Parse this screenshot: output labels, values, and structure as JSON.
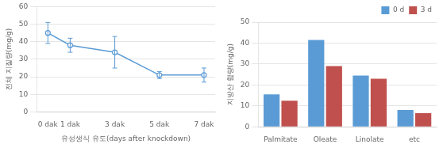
{
  "chart_data": [
    {
      "type": "line",
      "x": [
        0,
        1,
        3,
        5,
        7
      ],
      "values": [
        45,
        38,
        34,
        21,
        21
      ],
      "yerr": [
        6,
        4,
        9,
        2,
        4
      ],
      "color": "#5B9BD5",
      "marker": "circle",
      "line_style": "solid",
      "xlabel": "유성생식 유도(days after knockdown)",
      "ylabel": "전체 지질량(mg/g)",
      "xlim": [
        -0.5,
        7.5
      ],
      "xticks": [
        {
          "value": 0,
          "label": "0 dak"
        },
        {
          "value": 1,
          "label": "1 dak"
        },
        {
          "value": 3,
          "label": "3 dak"
        },
        {
          "value": 5,
          "label": "5 dak"
        },
        {
          "value": 7,
          "label": "7 dak"
        }
      ],
      "ylim": [
        0,
        60
      ],
      "yticks": [
        0,
        10,
        20,
        30,
        40,
        50,
        60
      ],
      "grid": true
    },
    {
      "type": "bar",
      "categories": [
        "Palmitate",
        "Oleate",
        "Linolate",
        "etc"
      ],
      "series": [
        {
          "name": "0 d",
          "color": "#5B9BD5",
          "values": [
            15.5,
            41.5,
            24.5,
            8.0
          ]
        },
        {
          "name": "3 d",
          "color": "#C0504D",
          "values": [
            12.5,
            29.0,
            23.0,
            6.5
          ]
        }
      ],
      "ylabel": "지방산 함량(mg/g)",
      "ylim": [
        0,
        50
      ],
      "yticks": [
        0,
        10,
        20,
        30,
        40,
        50
      ],
      "grid": true,
      "legend": "upper right"
    }
  ]
}
